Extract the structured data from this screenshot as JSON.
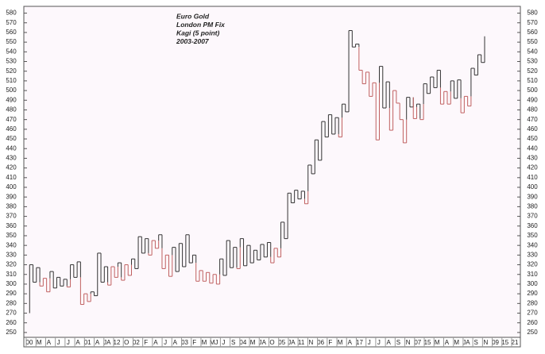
{
  "chart_data": {
    "type": "kagi",
    "title": [
      "Euro Gold",
      "London PM Fix",
      "Kagi (5 point)",
      "2003-2007"
    ],
    "values": [
      270,
      320,
      302,
      317,
      298,
      306,
      292,
      313,
      296,
      307,
      298,
      305,
      297,
      320,
      307,
      323,
      279,
      290,
      282,
      292,
      288,
      332,
      302,
      318,
      299,
      318,
      307,
      322,
      304,
      320,
      309,
      326,
      316,
      349,
      332,
      347,
      330,
      345,
      337,
      351,
      316,
      330,
      308,
      338,
      313,
      342,
      318,
      351,
      322,
      330,
      303,
      314,
      303,
      312,
      301,
      310,
      300,
      326,
      309,
      345,
      317,
      338,
      316,
      347,
      319,
      340,
      322,
      335,
      325,
      341,
      328,
      343,
      322,
      337,
      328,
      364,
      347,
      394,
      384,
      397,
      388,
      396,
      383,
      423,
      414,
      449,
      428,
      468,
      452,
      475,
      455,
      472,
      452,
      486,
      478,
      562,
      545,
      548,
      521,
      507,
      519,
      494,
      508,
      449,
      525,
      482,
      509,
      459,
      500,
      487,
      470,
      446,
      493,
      483,
      471,
      486,
      470,
      507,
      497,
      514,
      503,
      521,
      486,
      499,
      486,
      510,
      492,
      511,
      477,
      494,
      484,
      523,
      516,
      537,
      529,
      556
    ],
    "up_color": "#333333",
    "down_color": "#c06060",
    "x_labels": [
      "00",
      "M",
      "A",
      "J",
      "J",
      "A",
      "01",
      "A",
      "JA",
      "12",
      "O",
      "02",
      "F",
      "A",
      "J",
      "A",
      "03",
      "F",
      "M",
      "MJ",
      "J",
      "S",
      "04",
      "M",
      "JA",
      "O",
      "05",
      "JA",
      "11",
      "N",
      "06",
      "F",
      "M",
      "A",
      "17",
      "J",
      "J",
      "A",
      "S",
      "N",
      "07",
      "15",
      "M",
      "A",
      "M",
      "JA",
      "S",
      "N",
      "09",
      "15",
      "21"
    ],
    "ylim": [
      245,
      587
    ],
    "yticks": [
      250,
      260,
      270,
      280,
      290,
      300,
      310,
      320,
      330,
      340,
      350,
      360,
      370,
      380,
      390,
      400,
      410,
      420,
      430,
      440,
      450,
      460,
      470,
      480,
      490,
      500,
      510,
      520,
      530,
      540,
      550,
      560,
      570,
      580
    ]
  }
}
